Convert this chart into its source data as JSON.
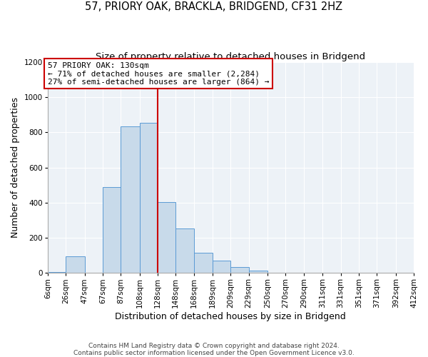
{
  "title": "57, PRIORY OAK, BRACKLA, BRIDGEND, CF31 2HZ",
  "subtitle": "Size of property relative to detached houses in Bridgend",
  "xlabel": "Distribution of detached houses by size in Bridgend",
  "ylabel": "Number of detached properties",
  "bar_color": "#c8daea",
  "bar_edge_color": "#5b9bd5",
  "background_color": "#edf2f7",
  "annotation_line1": "57 PRIORY OAK: 130sqm",
  "annotation_line2": "← 71% of detached houses are smaller (2,284)",
  "annotation_line3": "27% of semi-detached houses are larger (864) →",
  "vline_x": 128,
  "vline_color": "#cc0000",
  "ylim": [
    0,
    1200
  ],
  "yticks": [
    0,
    200,
    400,
    600,
    800,
    1000,
    1200
  ],
  "bin_edges": [
    6,
    26,
    47,
    67,
    87,
    108,
    128,
    148,
    168,
    189,
    209,
    229,
    250,
    270,
    290,
    311,
    331,
    351,
    371,
    392,
    412
  ],
  "bin_labels": [
    "6sqm",
    "26sqm",
    "47sqm",
    "67sqm",
    "87sqm",
    "108sqm",
    "128sqm",
    "148sqm",
    "168sqm",
    "189sqm",
    "209sqm",
    "229sqm",
    "250sqm",
    "270sqm",
    "290sqm",
    "311sqm",
    "331sqm",
    "351sqm",
    "371sqm",
    "392sqm",
    "412sqm"
  ],
  "bar_heights": [
    5,
    95,
    0,
    490,
    835,
    855,
    405,
    255,
    115,
    70,
    35,
    15,
    0,
    0,
    0,
    0,
    0,
    0,
    0,
    0
  ],
  "footer_line1": "Contains HM Land Registry data © Crown copyright and database right 2024.",
  "footer_line2": "Contains public sector information licensed under the Open Government Licence v3.0.",
  "title_fontsize": 10.5,
  "subtitle_fontsize": 9.5,
  "axis_label_fontsize": 9,
  "tick_fontsize": 7.5,
  "footer_fontsize": 6.5
}
